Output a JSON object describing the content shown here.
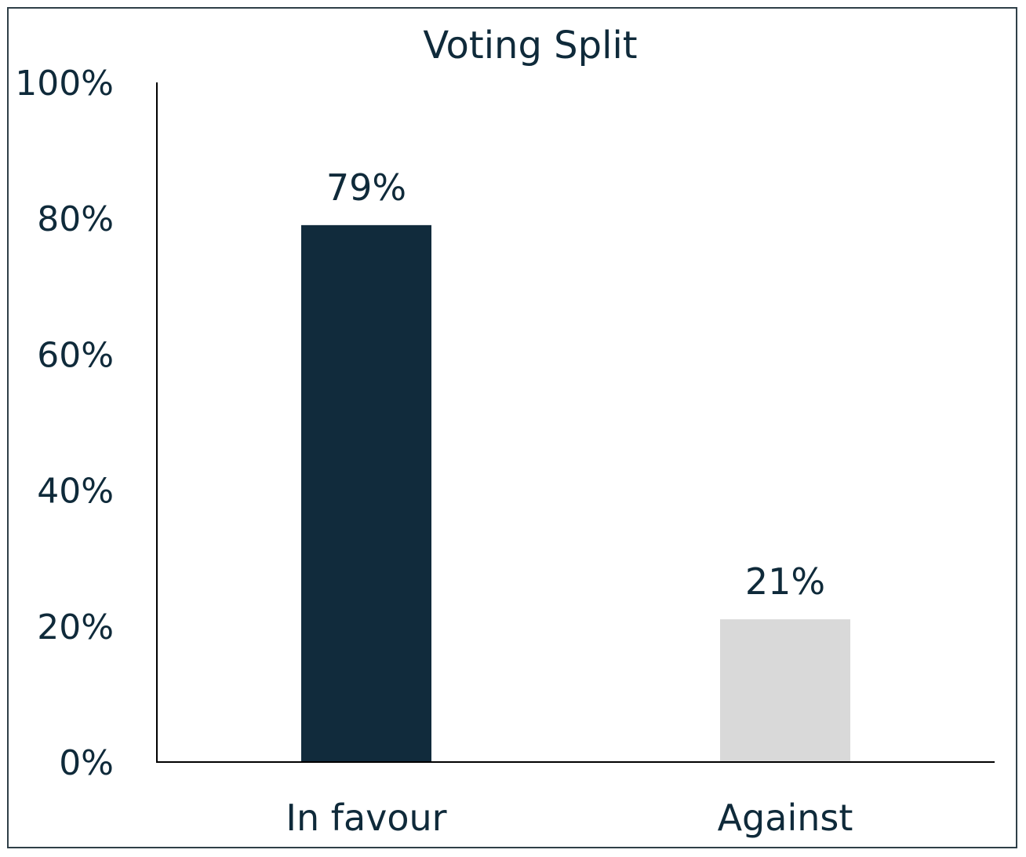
{
  "chart_data": {
    "type": "bar",
    "title": "Voting Split",
    "categories": [
      "In favour",
      "Against"
    ],
    "values": [
      79,
      21
    ],
    "data_labels": [
      "79%",
      "21%"
    ],
    "yticks": [
      {
        "value": 0,
        "label": "0%"
      },
      {
        "value": 20,
        "label": "20%"
      },
      {
        "value": 40,
        "label": "40%"
      },
      {
        "value": 60,
        "label": "60%"
      },
      {
        "value": 80,
        "label": "80%"
      },
      {
        "value": 100,
        "label": "100%"
      }
    ],
    "ylim": [
      0,
      100
    ],
    "xlabel": "",
    "ylabel": "",
    "grid": false,
    "legend": "none",
    "bar_colors": [
      "#112b3c",
      "#d9d9d9"
    ],
    "text_color": "#0f2a3a",
    "axis_color": "#000000"
  }
}
